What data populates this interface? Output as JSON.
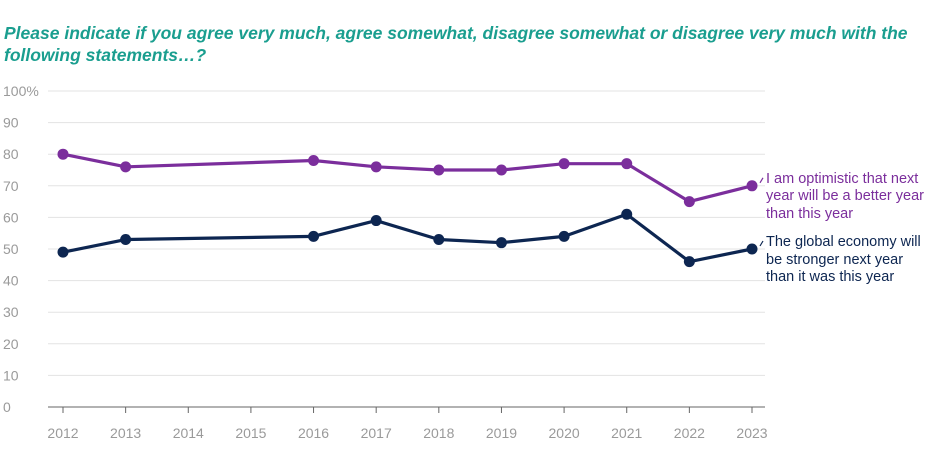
{
  "chart_data": {
    "type": "line",
    "title": "Please indicate if you agree very much, agree somewhat, disagree somewhat or disagree very much with the following statements…?",
    "xlabel": "",
    "ylabel": "",
    "ylim": [
      0,
      100
    ],
    "y_ticks": [
      0,
      10,
      20,
      30,
      40,
      50,
      60,
      70,
      80,
      90,
      100
    ],
    "y_tick_labels": [
      "0",
      "10",
      "20",
      "30",
      "40",
      "50",
      "60",
      "70",
      "80",
      "90",
      "100%"
    ],
    "x_ticks": [
      2012,
      2013,
      2014,
      2015,
      2016,
      2017,
      2018,
      2019,
      2020,
      2021,
      2022,
      2023
    ],
    "x": [
      2012,
      2013,
      2016,
      2017,
      2018,
      2019,
      2020,
      2021,
      2022,
      2023
    ],
    "grid": true,
    "legend": "right-of-line-ends",
    "series": [
      {
        "name": "I am optimistic that next year will be a better year than this year",
        "color": "#7b2e9c",
        "values": [
          80,
          76,
          78,
          76,
          75,
          75,
          77,
          77,
          65,
          70
        ]
      },
      {
        "name": "The global economy will be stronger next year than it was this year",
        "color": "#0d2651",
        "values": [
          49,
          53,
          54,
          59,
          53,
          52,
          54,
          61,
          46,
          50
        ]
      }
    ]
  }
}
